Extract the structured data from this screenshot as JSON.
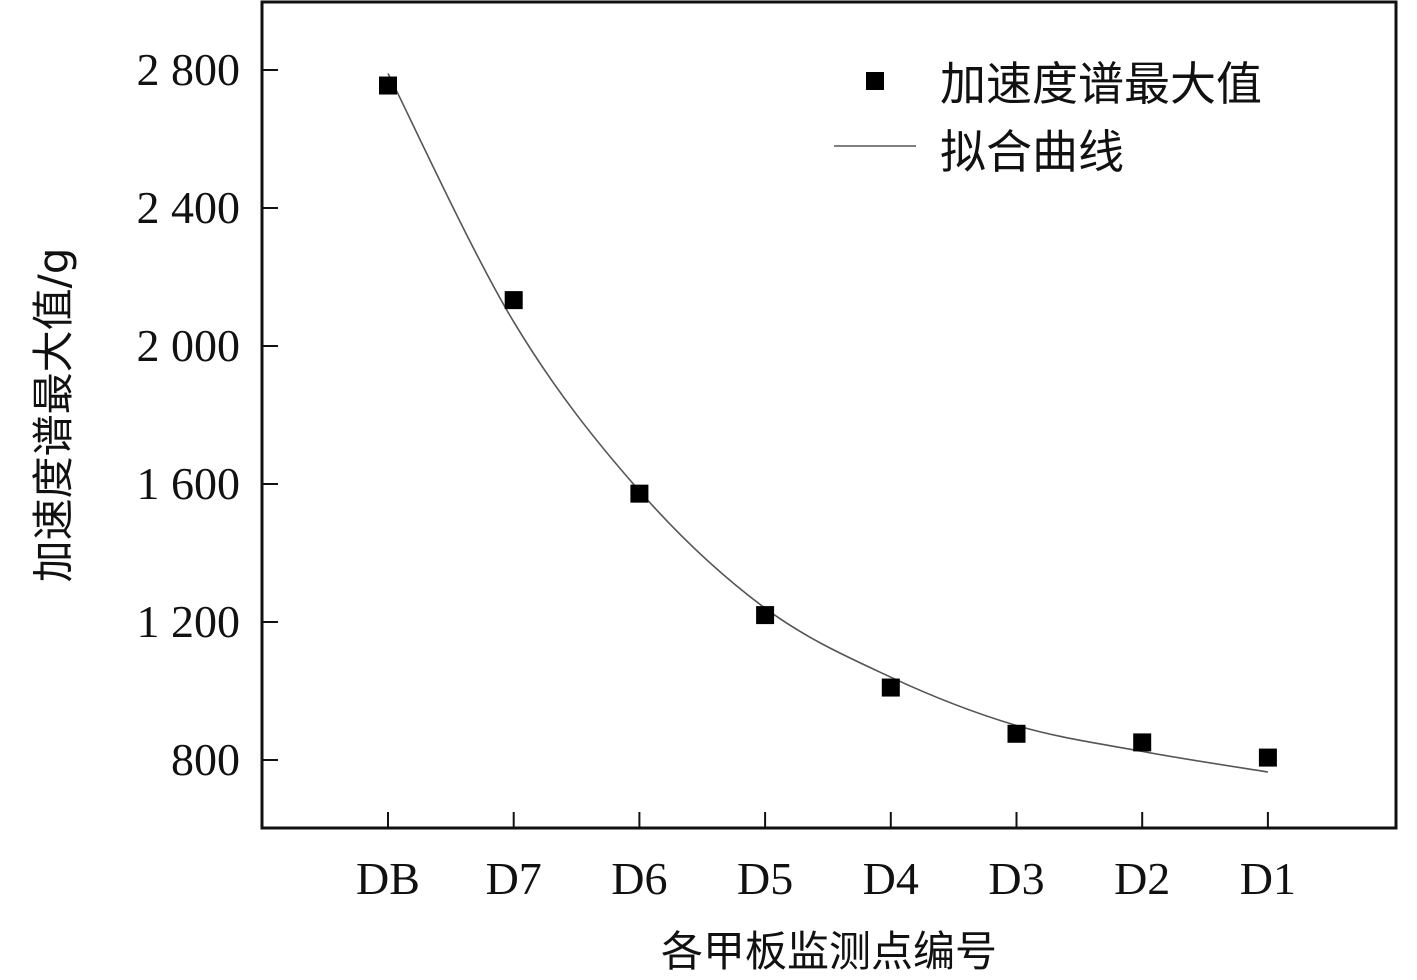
{
  "chart_data": {
    "type": "scatter",
    "xlabel": "各甲板监测点编号",
    "ylabel": "加速度谱最大值/g",
    "categories": [
      "DB",
      "D7",
      "D6",
      "D5",
      "D4",
      "D3",
      "D2",
      "D1"
    ],
    "ylim": [
      600,
      3000
    ],
    "yticks": [
      800,
      1200,
      1600,
      2000,
      2400,
      2800
    ],
    "ytick_labels": [
      "800",
      "1 200",
      "1 600",
      "2 000",
      "2 400",
      "2 800"
    ],
    "grid": false,
    "legend_position": "top-right",
    "series": [
      {
        "name": "加速度谱最大值",
        "kind": "scatter",
        "marker": "square",
        "color": "#000000",
        "values": [
          2755,
          2133,
          1572,
          1220,
          1010,
          876,
          851,
          807
        ]
      },
      {
        "name": "拟合曲线",
        "kind": "line",
        "color": "#555555",
        "values": [
          2790,
          2070,
          1580,
          1240,
          1040,
          900,
          825,
          765
        ]
      }
    ]
  }
}
